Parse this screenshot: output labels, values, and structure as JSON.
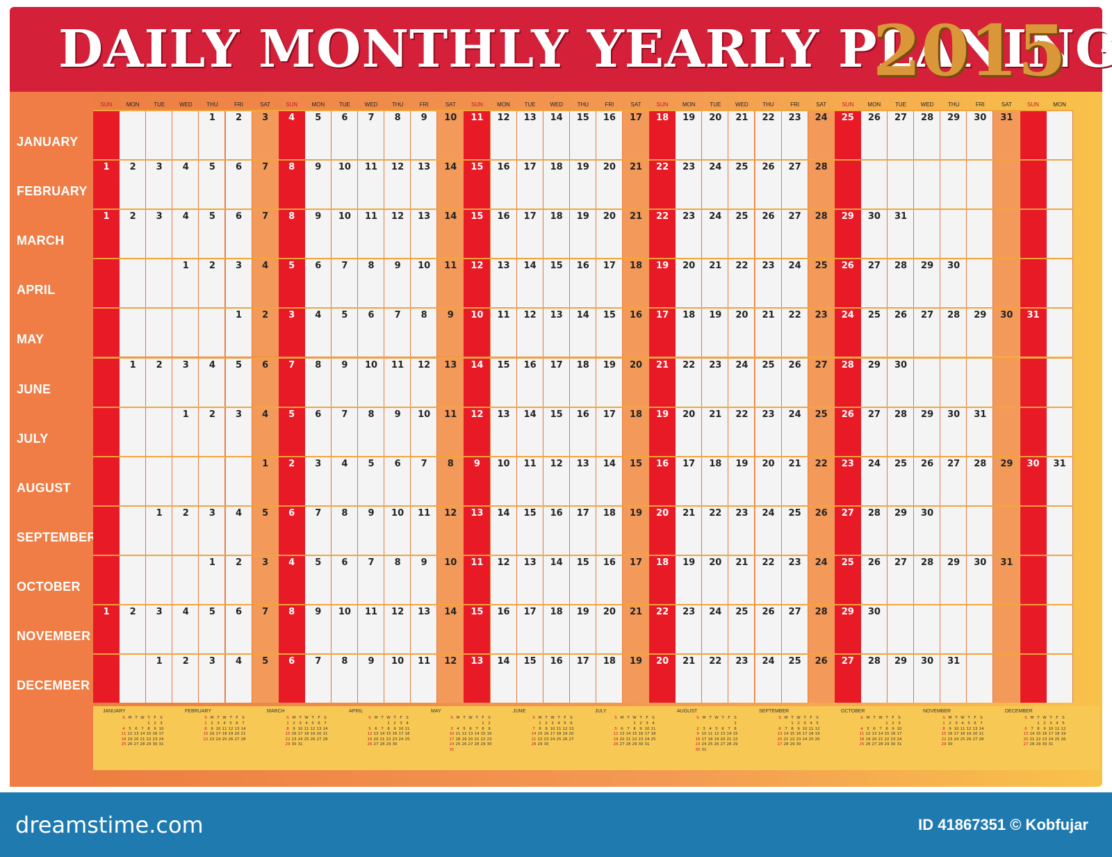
{
  "title": "DAILY MONTHLY YEARLY PLANING",
  "year": "2015",
  "weekday_headers": [
    "SUN",
    "MON",
    "TUE",
    "WED",
    "THU",
    "FRI",
    "SAT"
  ],
  "final_header": "MON",
  "months": [
    {
      "name": "JANUARY",
      "short": "JANUARY",
      "offset": 4,
      "days": 31
    },
    {
      "name": "FEBRUARY",
      "short": "FEBRUARY",
      "offset": 0,
      "days": 28
    },
    {
      "name": "MARCH",
      "short": "MARCH",
      "offset": 0,
      "days": 31
    },
    {
      "name": "APRIL",
      "short": "APRIL",
      "offset": 3,
      "days": 30
    },
    {
      "name": "MAY",
      "short": "MAY",
      "offset": 5,
      "days": 31
    },
    {
      "name": "JUNE",
      "short": "JUNE",
      "offset": 1,
      "days": 30
    },
    {
      "name": "JULY",
      "short": "JULY",
      "offset": 3,
      "days": 31
    },
    {
      "name": "AUGUST",
      "short": "AUGUST",
      "offset": 6,
      "days": 31
    },
    {
      "name": "SEPTEMBER",
      "short": "SEPTEMBER",
      "offset": 2,
      "days": 30
    },
    {
      "name": "OCTOBER",
      "short": "OCTOBER",
      "offset": 4,
      "days": 31
    },
    {
      "name": "NOVEMBER",
      "short": "NOVEMBER",
      "offset": 0,
      "days": 30
    },
    {
      "name": "DECEMBER",
      "short": "DECEMBER",
      "offset": 2,
      "days": 31
    }
  ],
  "mini_weekday_initials": [
    "S",
    "M",
    "T",
    "W",
    "T",
    "F",
    "S"
  ],
  "colors": {
    "title_bg": "#d42038",
    "sunday": "#e81a26",
    "saturday": "#f39a5a",
    "year_gold": "#d9973a",
    "footer": "#1f7ab0"
  },
  "footer": {
    "site": "dreamstime.com",
    "credit": "ID 41867351 © Kobfujar"
  }
}
